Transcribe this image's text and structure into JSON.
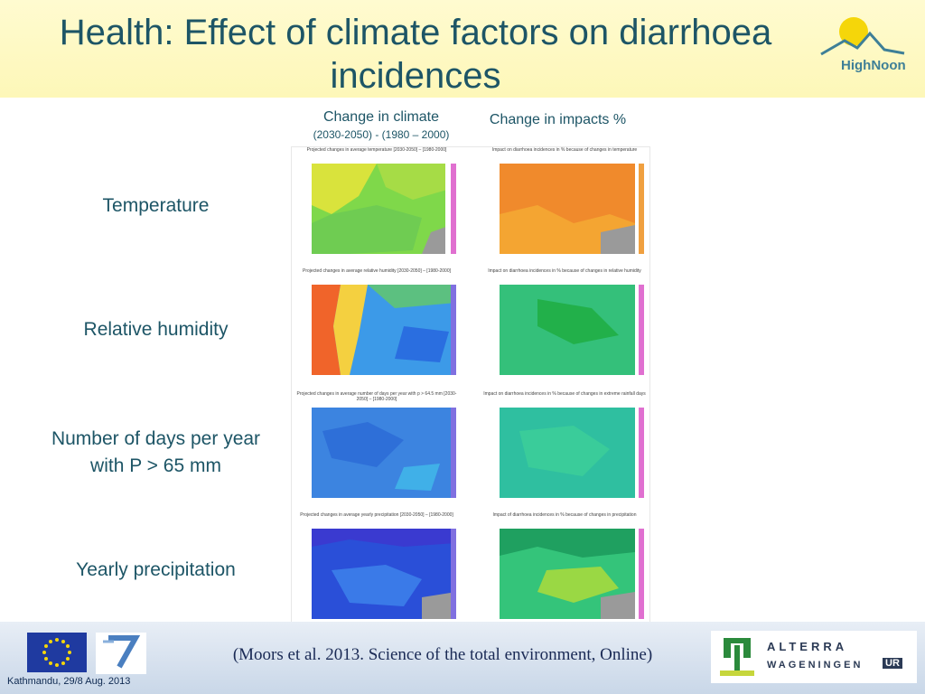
{
  "slide": {
    "title": "Health: Effect of climate factors on diarrhoea incidences",
    "logo_text": "HighNoon",
    "col_climate_title": "Change in climate",
    "col_climate_subtitle": "(2030-2050) - (1980 – 2000)",
    "col_impact_title": "Change in impacts %",
    "rows": [
      {
        "label": "Temperature",
        "climate_map_title": "Projected changes in average temperature [2030-2050] – [1980-2000]",
        "impact_map_title": "Impact on diarrhoea incidences in % because of changes in temperature"
      },
      {
        "label": "Relative humidity",
        "climate_map_title": "Projected changes in average relative humidity [2030-2050] – [1980-2000]",
        "impact_map_title": "Impact on diarrhoea incidences in % because of changes in relative humidity"
      },
      {
        "label": "Number of days per year with P > 65 mm",
        "climate_map_title": "Projected changes in average number of days per year with p > 64.5 mm [2030-2050] – [1980-2000]",
        "impact_map_title": "Impact on diarrhoea incidences in % because of changes in extreme rainfall days"
      },
      {
        "label": "Yearly precipitation",
        "climate_map_title": "Projected changes in average yearly precipitation [2030-2050] – [1980-2000]",
        "impact_map_title": "Impact of diarrhoea incidences in % because of changes in precipitation"
      }
    ],
    "citation": "(Moors et al. 2013. Science of the total environment, Online)",
    "footer_date": "Kathmandu, 29/8 Aug. 2013",
    "alterra_text": "ALTERRA",
    "wageningen_text": "WAGENINGEN",
    "ur_text": "UR",
    "colors": {
      "title": "#1d5566",
      "header_bg": "#fdf7b8",
      "footer_bg": "#c9d7e8"
    }
  }
}
